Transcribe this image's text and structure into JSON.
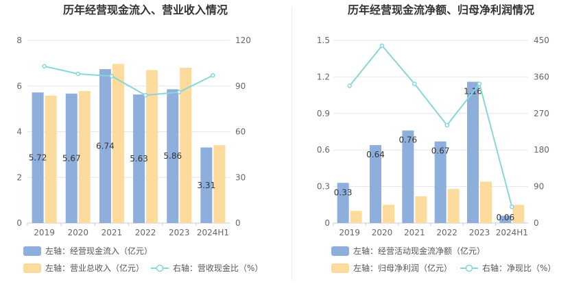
{
  "chart_data": [
    {
      "type": "bar",
      "title": "历年经营现金流入、营业收入情况",
      "categories": [
        "2019",
        "2020",
        "2021",
        "2022",
        "2023",
        "2024H1"
      ],
      "left_axis": {
        "ylim": [
          0,
          8
        ],
        "ticks": [
          "0",
          "2",
          "4",
          "6",
          "8"
        ]
      },
      "right_axis": {
        "ylim": [
          0,
          120
        ],
        "ticks": [
          "0",
          "30",
          "60",
          "90",
          "120"
        ]
      },
      "series": [
        {
          "name": "左轴：经营现金流入（亿元）",
          "axis": "left",
          "kind": "bar",
          "color": "#8eaedb",
          "values": [
            5.72,
            5.67,
            6.74,
            5.63,
            5.86,
            3.31
          ],
          "labels": [
            "5.72",
            "5.67",
            "6.74",
            "5.63",
            "5.86",
            "3.31"
          ]
        },
        {
          "name": "左轴：营业总收入（亿元）",
          "axis": "left",
          "kind": "bar",
          "color": "#fddb9c",
          "values": [
            5.58,
            5.78,
            6.97,
            6.7,
            6.8,
            3.41
          ]
        },
        {
          "name": "右轴：营收现金比（%）",
          "axis": "right",
          "kind": "line",
          "color": "#86d6da",
          "values": [
            103,
            98,
            96.5,
            84,
            86,
            97
          ]
        }
      ],
      "grid": true,
      "legend": "bottom-left"
    },
    {
      "type": "bar",
      "title": "历年经营现金流净额、归母净利润情况",
      "categories": [
        "2019",
        "2020",
        "2021",
        "2022",
        "2023",
        "2024H1"
      ],
      "left_axis": {
        "ylim": [
          0,
          1.5
        ],
        "ticks": [
          "0",
          "0.3",
          "0.6",
          "0.9",
          "1.2",
          "1.5"
        ]
      },
      "right_axis": {
        "ylim": [
          0,
          450
        ],
        "ticks": [
          "0",
          "90",
          "180",
          "270",
          "360",
          "450"
        ]
      },
      "series": [
        {
          "name": "左轴：经营活动现金流净额（亿元）",
          "axis": "left",
          "kind": "bar",
          "color": "#8eaedb",
          "values": [
            0.33,
            0.64,
            0.76,
            0.67,
            1.16,
            0.06
          ],
          "labels": [
            "0.33",
            "0.64",
            "0.76",
            "0.67",
            "1.16",
            "0.06"
          ]
        },
        {
          "name": "左轴：归母净利润（亿元）",
          "axis": "left",
          "kind": "bar",
          "color": "#fddb9c",
          "values": [
            0.1,
            0.15,
            0.22,
            0.28,
            0.34,
            0.15
          ]
        },
        {
          "name": "右轴：净现比（%）",
          "axis": "right",
          "kind": "line",
          "color": "#86d6da",
          "values": [
            338,
            437,
            343,
            241,
            343,
            40
          ]
        }
      ],
      "grid": true,
      "legend": "bottom-left"
    }
  ]
}
